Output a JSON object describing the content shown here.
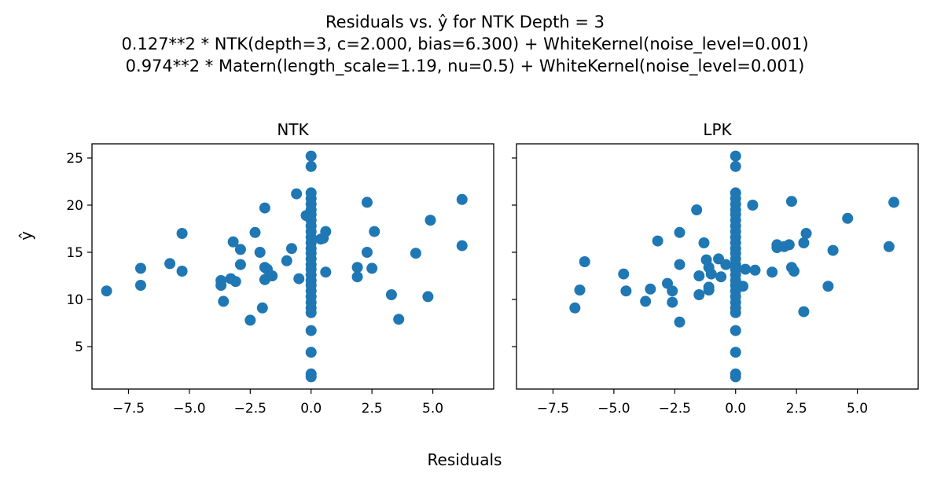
{
  "figure": {
    "title_lines": [
      "Residuals vs. ŷ for NTK Depth = 3",
      "0.127**2 * NTK(depth=3, c=2.000, bias=6.300) + WhiteKernel(noise_level=0.001)",
      "0.974**2 * Matern(length_scale=1.19, nu=0.5) + WhiteKernel(noise_level=0.001)"
    ],
    "xlabel": "Residuals",
    "ylabel": "ŷ",
    "colors": {
      "marker": "#1f77b4",
      "axes": "#000000",
      "background": "#ffffff"
    }
  },
  "chart_data": [
    {
      "type": "scatter",
      "title": "NTK",
      "xlim": [
        -9,
        7.5
      ],
      "ylim": [
        0.5,
        26.5
      ],
      "xticks": [
        -7.5,
        -5.0,
        -2.5,
        0.0,
        2.5,
        5.0
      ],
      "xtick_labels": [
        "−7.5",
        "−5.0",
        "−2.5",
        "0.0",
        "2.5",
        "5.0"
      ],
      "yticks": [
        5,
        10,
        15,
        20,
        25
      ],
      "ytick_labels": [
        "5",
        "10",
        "15",
        "20",
        "25"
      ],
      "grid": false,
      "series": [
        {
          "points": [
            [
              -8.4,
              10.9
            ],
            [
              -7.0,
              13.3
            ],
            [
              -7.0,
              11.5
            ],
            [
              -5.8,
              13.8
            ],
            [
              -5.3,
              13.0
            ],
            [
              -5.3,
              17.0
            ],
            [
              -3.7,
              12.0
            ],
            [
              -3.7,
              11.5
            ],
            [
              -3.6,
              9.8
            ],
            [
              -3.3,
              12.2
            ],
            [
              -3.2,
              16.1
            ],
            [
              -3.1,
              11.9
            ],
            [
              -2.9,
              15.3
            ],
            [
              -2.9,
              13.7
            ],
            [
              -2.5,
              7.8
            ],
            [
              -2.3,
              17.1
            ],
            [
              -2.1,
              15.0
            ],
            [
              -2.0,
              9.1
            ],
            [
              -1.9,
              12.1
            ],
            [
              -1.9,
              13.4
            ],
            [
              -1.9,
              19.7
            ],
            [
              -1.8,
              13.2
            ],
            [
              -1.6,
              12.5
            ],
            [
              -1.0,
              14.1
            ],
            [
              -0.8,
              15.4
            ],
            [
              -0.6,
              21.2
            ],
            [
              -0.5,
              12.2
            ],
            [
              -0.2,
              18.9
            ],
            [
              0.4,
              16.4
            ],
            [
              0.5,
              16.5
            ],
            [
              0.6,
              17.2
            ],
            [
              0.6,
              12.9
            ],
            [
              1.9,
              13.4
            ],
            [
              1.9,
              12.4
            ],
            [
              2.3,
              20.3
            ],
            [
              2.3,
              15.0
            ],
            [
              2.5,
              13.3
            ],
            [
              2.6,
              17.2
            ],
            [
              3.3,
              10.5
            ],
            [
              3.6,
              7.9
            ],
            [
              4.3,
              14.9
            ],
            [
              4.8,
              10.3
            ],
            [
              4.9,
              18.4
            ],
            [
              6.2,
              20.6
            ],
            [
              6.2,
              15.7
            ],
            [
              0.0,
              25.2
            ],
            [
              0.0,
              24.1
            ],
            [
              0.0,
              21.3
            ],
            [
              0.0,
              20.7
            ],
            [
              0.0,
              20.1
            ],
            [
              0.0,
              19.5
            ],
            [
              0.0,
              19.0
            ],
            [
              0.0,
              18.4
            ],
            [
              0.0,
              17.8
            ],
            [
              0.0,
              17.2
            ],
            [
              0.0,
              16.6
            ],
            [
              0.0,
              16.0
            ],
            [
              0.0,
              15.4
            ],
            [
              0.0,
              14.9
            ],
            [
              0.0,
              14.3
            ],
            [
              0.0,
              13.7
            ],
            [
              0.0,
              13.2
            ],
            [
              0.0,
              12.6
            ],
            [
              0.0,
              12.0
            ],
            [
              0.0,
              11.5
            ],
            [
              0.0,
              10.9
            ],
            [
              0.0,
              10.3
            ],
            [
              0.0,
              9.7
            ],
            [
              0.0,
              9.1
            ],
            [
              0.0,
              8.6
            ],
            [
              0.0,
              6.7
            ],
            [
              0.0,
              4.4
            ],
            [
              0.0,
              2.1
            ],
            [
              0.0,
              1.8
            ]
          ]
        }
      ]
    },
    {
      "type": "scatter",
      "title": "LPK",
      "xlim": [
        -9,
        7.5
      ],
      "ylim": [
        0.5,
        26.5
      ],
      "xticks": [
        -7.5,
        -5.0,
        -2.5,
        0.0,
        2.5,
        5.0
      ],
      "xtick_labels": [
        "−7.5",
        "−5.0",
        "−2.5",
        "0.0",
        "2.5",
        "5.0"
      ],
      "yticks": [
        5,
        10,
        15,
        20,
        25
      ],
      "ytick_labels": [],
      "grid": false,
      "series": [
        {
          "points": [
            [
              -6.6,
              9.1
            ],
            [
              -6.4,
              11.0
            ],
            [
              -6.2,
              14.0
            ],
            [
              -4.6,
              12.7
            ],
            [
              -4.5,
              10.9
            ],
            [
              -3.7,
              9.8
            ],
            [
              -3.5,
              11.1
            ],
            [
              -3.2,
              16.2
            ],
            [
              -2.8,
              11.7
            ],
            [
              -2.6,
              10.9
            ],
            [
              -2.6,
              9.7
            ],
            [
              -2.3,
              17.1
            ],
            [
              -2.3,
              13.7
            ],
            [
              -2.3,
              7.6
            ],
            [
              -1.6,
              19.5
            ],
            [
              -1.5,
              10.5
            ],
            [
              -1.5,
              12.5
            ],
            [
              -1.3,
              16.0
            ],
            [
              -1.2,
              14.2
            ],
            [
              -1.1,
              13.4
            ],
            [
              -1.1,
              11.0
            ],
            [
              -1.1,
              11.3
            ],
            [
              -1.0,
              12.7
            ],
            [
              -0.7,
              14.3
            ],
            [
              -0.6,
              12.4
            ],
            [
              -0.4,
              13.7
            ],
            [
              0.3,
              11.4
            ],
            [
              0.4,
              13.2
            ],
            [
              0.7,
              20.0
            ],
            [
              0.8,
              13.1
            ],
            [
              1.5,
              12.9
            ],
            [
              1.7,
              15.5
            ],
            [
              1.7,
              15.8
            ],
            [
              2.0,
              15.6
            ],
            [
              2.2,
              15.8
            ],
            [
              2.3,
              20.4
            ],
            [
              2.3,
              13.4
            ],
            [
              2.4,
              13.0
            ],
            [
              2.8,
              16.0
            ],
            [
              2.8,
              8.7
            ],
            [
              2.9,
              17.0
            ],
            [
              3.8,
              11.4
            ],
            [
              4.0,
              15.2
            ],
            [
              4.6,
              18.6
            ],
            [
              6.3,
              15.6
            ],
            [
              6.5,
              20.3
            ],
            [
              0.0,
              25.2
            ],
            [
              0.0,
              24.1
            ],
            [
              0.0,
              21.3
            ],
            [
              0.0,
              20.7
            ],
            [
              0.0,
              20.1
            ],
            [
              0.0,
              19.5
            ],
            [
              0.0,
              19.0
            ],
            [
              0.0,
              18.4
            ],
            [
              0.0,
              17.8
            ],
            [
              0.0,
              17.2
            ],
            [
              0.0,
              16.6
            ],
            [
              0.0,
              16.0
            ],
            [
              0.0,
              15.4
            ],
            [
              0.0,
              14.9
            ],
            [
              0.0,
              14.3
            ],
            [
              0.0,
              13.7
            ],
            [
              0.0,
              13.2
            ],
            [
              0.0,
              12.6
            ],
            [
              0.0,
              12.0
            ],
            [
              0.0,
              11.5
            ],
            [
              0.0,
              10.9
            ],
            [
              0.0,
              10.3
            ],
            [
              0.0,
              9.7
            ],
            [
              0.0,
              9.1
            ],
            [
              0.0,
              8.6
            ],
            [
              0.0,
              6.7
            ],
            [
              0.0,
              4.4
            ],
            [
              0.0,
              2.1
            ],
            [
              0.0,
              1.8
            ]
          ]
        }
      ]
    }
  ]
}
